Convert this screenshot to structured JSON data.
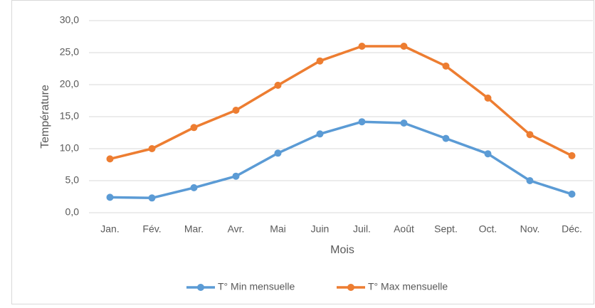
{
  "chart_data": {
    "type": "line",
    "x_label": "Mois",
    "y_label": "Température",
    "categories": [
      "Jan.",
      "Fév.",
      "Mar.",
      "Avr.",
      "Mai",
      "Juin",
      "Juil.",
      "Août",
      "Sept.",
      "Oct.",
      "Nov.",
      "Déc."
    ],
    "series": [
      {
        "name": "T° Min mensuelle",
        "color": "#5b9bd5",
        "values": [
          2.4,
          2.3,
          3.9,
          5.7,
          9.3,
          12.3,
          14.2,
          14.0,
          11.6,
          9.2,
          5.0,
          2.9
        ]
      },
      {
        "name": "T° Max mensuelle",
        "color": "#ed7d31",
        "values": [
          8.4,
          10.0,
          13.3,
          16.0,
          19.9,
          23.7,
          26.0,
          26.0,
          22.9,
          17.9,
          12.2,
          8.9
        ]
      }
    ],
    "ylim": [
      0,
      30
    ],
    "yticks": [
      {
        "value": 0,
        "label": "0,0"
      },
      {
        "value": 5,
        "label": "5,0"
      },
      {
        "value": 10,
        "label": "10,0"
      },
      {
        "value": 15,
        "label": "15,0"
      },
      {
        "value": 20,
        "label": "20,0"
      },
      {
        "value": 25,
        "label": "25,0"
      },
      {
        "value": 30,
        "label": "30,0"
      }
    ],
    "grid": true,
    "legend": "bottom"
  }
}
